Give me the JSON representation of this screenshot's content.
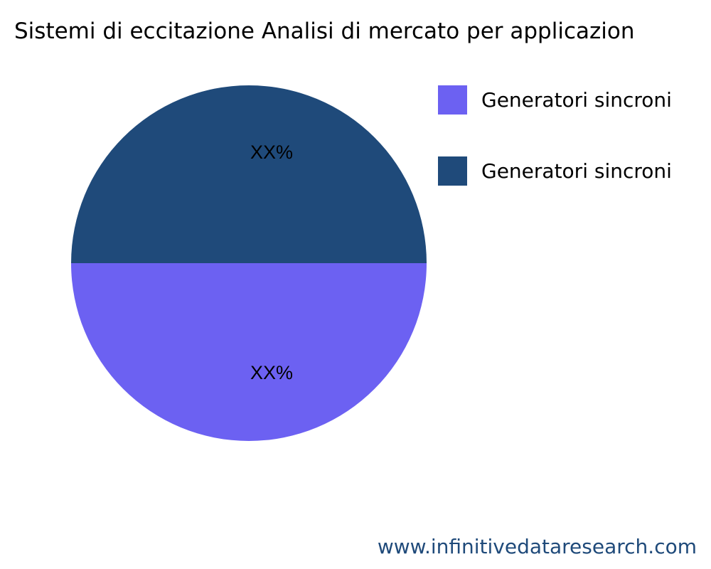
{
  "chart_data": {
    "type": "pie",
    "title": "Sistemi di eccitazione Analisi di mercato per applicazion",
    "slices": [
      {
        "name": "Generatori sincroni",
        "value": 50,
        "label": "XX%",
        "color": "#6c61f2"
      },
      {
        "name": "Generatori sincroni",
        "value": 50,
        "label": "XX%",
        "color": "#1f4a7a"
      }
    ],
    "legend_position": "top-right"
  },
  "watermark": "www.infinitivedataresearch.com"
}
